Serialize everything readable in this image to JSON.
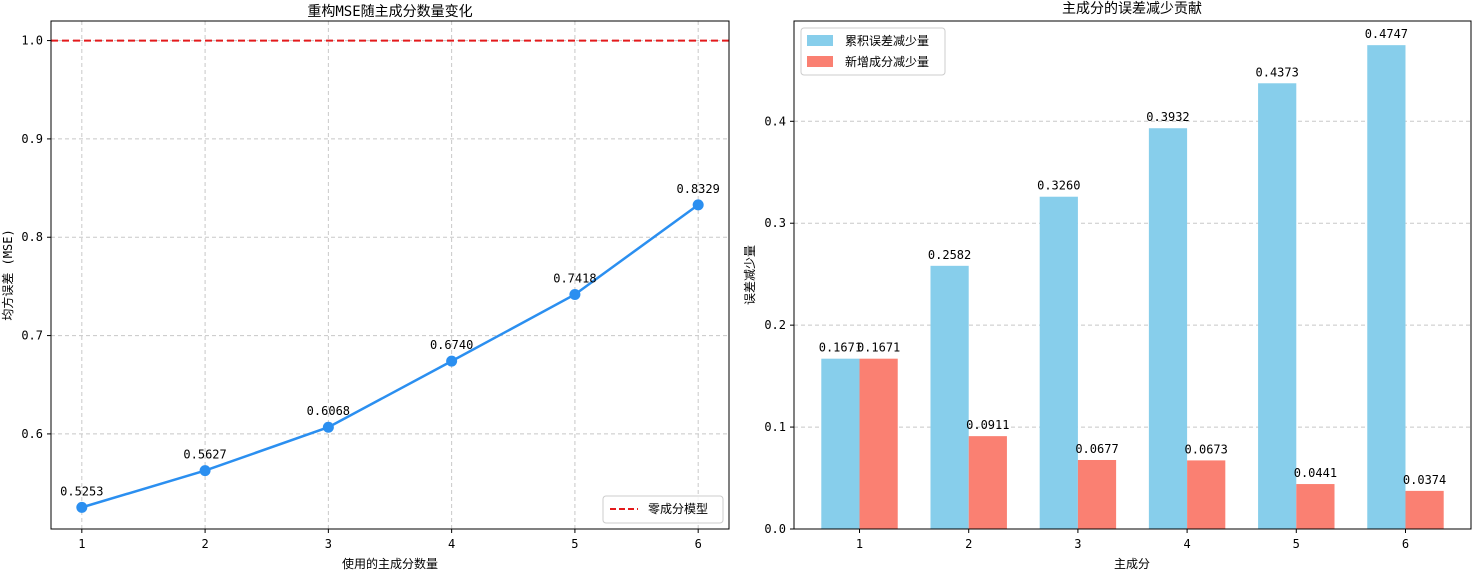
{
  "chart_data": [
    {
      "type": "line",
      "title": "重构MSE随主成分数量变化",
      "xlabel": "使用的主成分数量",
      "ylabel": "均方误差 (MSE)",
      "x": [
        1,
        2,
        3,
        4,
        5,
        6
      ],
      "xticks": [
        "1",
        "2",
        "3",
        "4",
        "5",
        "6"
      ],
      "yticks": [
        "0.6",
        "0.7",
        "0.8",
        "0.9",
        "1.0"
      ],
      "ylim": [
        0.5033,
        1.0199
      ],
      "xlim": [
        0.75,
        6.25
      ],
      "grid": true,
      "legend_position": "lower-right",
      "series": [
        {
          "values": [
            0.5253,
            0.5627,
            0.6068,
            0.674,
            0.7418,
            0.8329
          ],
          "labels": [
            "0.5253",
            "0.5627",
            "0.6068",
            "0.6740",
            "0.7418",
            "0.8329"
          ],
          "color": "#2b8ff0"
        }
      ],
      "reference_line": {
        "name": "零成分模型",
        "value": 1.0,
        "color": "#e31a1c"
      }
    },
    {
      "type": "bar",
      "title": "主成分的误差减少贡献",
      "xlabel": "主成分",
      "ylabel": "误差减少量",
      "categories": [
        "1",
        "2",
        "3",
        "4",
        "5",
        "6"
      ],
      "yticks": [
        "0.0",
        "0.1",
        "0.2",
        "0.3",
        "0.4"
      ],
      "ylim": [
        0,
        0.4984
      ],
      "grid": true,
      "legend_position": "upper-left",
      "series": [
        {
          "name": "累积误差减少量",
          "color": "#87ceeb",
          "values": [
            0.1671,
            0.2582,
            0.326,
            0.3932,
            0.4373,
            0.4747
          ],
          "labels": [
            "0.1671",
            "0.2582",
            "0.3260",
            "0.3932",
            "0.4373",
            "0.4747"
          ]
        },
        {
          "name": "新增成分减少量",
          "color": "#fa8072",
          "values": [
            0.1671,
            0.0911,
            0.0677,
            0.0673,
            0.0441,
            0.0374
          ],
          "labels": [
            "0.1671",
            "0.0911",
            "0.0677",
            "0.0673",
            "0.0441",
            "0.0374"
          ]
        }
      ]
    }
  ]
}
